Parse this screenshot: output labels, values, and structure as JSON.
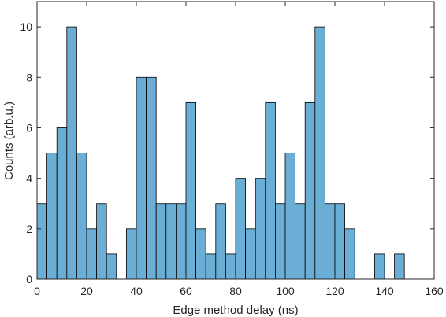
{
  "chart_data": {
    "type": "bar",
    "subtype": "histogram",
    "xlabel": "Edge method delay (ns)",
    "ylabel": "Counts (arb.u.)",
    "xlim": [
      0,
      160
    ],
    "ylim": [
      0,
      11
    ],
    "xticks": [
      0,
      20,
      40,
      60,
      80,
      100,
      120,
      140,
      160
    ],
    "yticks": [
      0,
      2,
      4,
      6,
      8,
      10
    ],
    "bin_width": 4,
    "bin_edges_start": [
      0,
      4,
      8,
      12,
      16,
      20,
      24,
      28,
      32,
      36,
      40,
      44,
      48,
      52,
      56,
      60,
      64,
      68,
      72,
      76,
      80,
      84,
      88,
      92,
      96,
      100,
      104,
      108,
      112,
      116,
      120,
      124,
      128,
      132,
      136,
      140,
      144,
      148,
      152,
      156
    ],
    "values": [
      3,
      5,
      6,
      10,
      5,
      2,
      3,
      1,
      0,
      2,
      8,
      8,
      3,
      3,
      3,
      7,
      2,
      1,
      3,
      1,
      4,
      2,
      4,
      7,
      3,
      5,
      3,
      7,
      10,
      3,
      3,
      2,
      0,
      0,
      1,
      0,
      1,
      0,
      0,
      0
    ],
    "bar_color": "#6AAED6",
    "edge_color": "#000000",
    "grid": false,
    "box": true
  }
}
